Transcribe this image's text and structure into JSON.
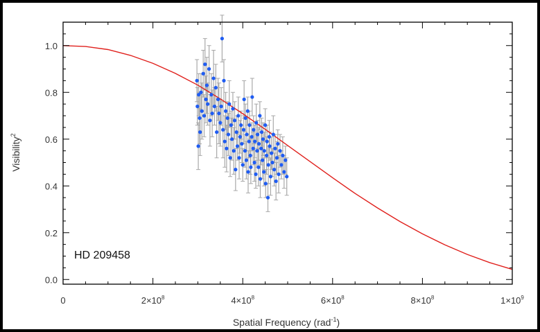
{
  "chart_data": {
    "type": "scatter",
    "title": "",
    "xlabel": {
      "base": "Spatial Frequency (rad",
      "sup": "-1",
      "tail": ")"
    },
    "ylabel": {
      "base": "Visibility",
      "sup": "2"
    },
    "xlim": [
      0,
      1000000000
    ],
    "ylim": [
      -0.02,
      1.1
    ],
    "x_ticks": [
      {
        "value": 0,
        "base": "0",
        "sup": ""
      },
      {
        "value": 200000000,
        "base": "2×10",
        "sup": "8"
      },
      {
        "value": 400000000,
        "base": "4×10",
        "sup": "8"
      },
      {
        "value": 600000000,
        "base": "6×10",
        "sup": "8"
      },
      {
        "value": 800000000,
        "base": "8×10",
        "sup": "8"
      },
      {
        "value": 1000000000,
        "base": "1×10",
        "sup": "9"
      }
    ],
    "y_ticks": [
      {
        "value": 0.0,
        "label": "0.0"
      },
      {
        "value": 0.2,
        "label": "0.2"
      },
      {
        "value": 0.4,
        "label": "0.4"
      },
      {
        "value": 0.6,
        "label": "0.6"
      },
      {
        "value": 0.8,
        "label": "0.8"
      },
      {
        "value": 1.0,
        "label": "1.0"
      }
    ],
    "annotation": "HD 209458",
    "grid": false,
    "colors": {
      "points": "#1f5cf2",
      "errorbars": "#a8a8a8",
      "model": "#e0201c",
      "axes": "#000000"
    },
    "model_curve": {
      "description_of_points": "uniform-disk visibility squared model",
      "x": [
        0,
        50000000,
        100000000,
        150000000,
        200000000,
        250000000,
        300000000,
        350000000,
        400000000,
        450000000,
        500000000,
        550000000,
        600000000,
        650000000,
        700000000,
        750000000,
        800000000,
        850000000,
        900000000,
        950000000,
        1000000000
      ],
      "y": [
        1.0,
        0.996,
        0.983,
        0.958,
        0.924,
        0.881,
        0.831,
        0.772,
        0.709,
        0.642,
        0.573,
        0.504,
        0.435,
        0.368,
        0.306,
        0.248,
        0.195,
        0.148,
        0.107,
        0.072,
        0.043
      ]
    },
    "series": [
      {
        "x": [
          298000000,
          299000000,
          301000000,
          302000000,
          304000000,
          305000000,
          307000000,
          309000000,
          312000000,
          314000000,
          316000000,
          318000000,
          320000000,
          322000000,
          325000000,
          327000000,
          330000000,
          332000000,
          335000000,
          337000000,
          340000000,
          342000000,
          345000000,
          347000000,
          350000000,
          352000000,
          354000000,
          356000000,
          358000000,
          360000000,
          362000000,
          364000000,
          366000000,
          368000000,
          370000000,
          372000000,
          374000000,
          376000000,
          378000000,
          380000000,
          382000000,
          384000000,
          386000000,
          388000000,
          390000000,
          392000000,
          394000000,
          396000000,
          398000000,
          400000000,
          402000000,
          403000000,
          405000000,
          406000000,
          408000000,
          409000000,
          411000000,
          412000000,
          414000000,
          415000000,
          417000000,
          418000000,
          420000000,
          421000000,
          423000000,
          424000000,
          426000000,
          427000000,
          429000000,
          430000000,
          432000000,
          433000000,
          435000000,
          436000000,
          438000000,
          439000000,
          441000000,
          442000000,
          444000000,
          445000000,
          447000000,
          448000000,
          450000000,
          451000000,
          453000000,
          454000000,
          456000000,
          457000000,
          459000000,
          460000000,
          462000000,
          464000000,
          466000000,
          468000000,
          470000000,
          472000000,
          474000000,
          476000000,
          478000000,
          480000000,
          483000000,
          486000000,
          489000000,
          492000000,
          495000000,
          498000000
        ],
        "y": [
          0.85,
          0.74,
          0.57,
          0.79,
          0.69,
          0.63,
          0.8,
          0.72,
          0.88,
          0.7,
          0.92,
          0.77,
          0.83,
          0.75,
          0.9,
          0.68,
          0.79,
          0.71,
          0.86,
          0.74,
          0.82,
          0.63,
          0.77,
          0.71,
          0.67,
          0.74,
          1.03,
          0.64,
          0.85,
          0.59,
          0.72,
          0.56,
          0.69,
          0.62,
          0.75,
          0.52,
          0.66,
          0.6,
          0.73,
          0.55,
          0.68,
          0.47,
          0.63,
          0.57,
          0.7,
          0.52,
          0.61,
          0.66,
          0.58,
          0.49,
          0.64,
          0.77,
          0.55,
          0.69,
          0.51,
          0.62,
          0.72,
          0.46,
          0.59,
          0.66,
          0.53,
          0.48,
          0.61,
          0.78,
          0.56,
          0.64,
          0.5,
          0.59,
          0.45,
          0.67,
          0.55,
          0.62,
          0.48,
          0.58,
          0.7,
          0.43,
          0.56,
          0.63,
          0.51,
          0.6,
          0.46,
          0.55,
          0.66,
          0.41,
          0.53,
          0.59,
          0.35,
          0.49,
          0.61,
          0.57,
          0.44,
          0.54,
          0.5,
          0.62,
          0.47,
          0.56,
          0.42,
          0.52,
          0.58,
          0.45,
          0.55,
          0.49,
          0.53,
          0.46,
          0.51,
          0.44
        ],
        "yerr": [
          0.09,
          0.08,
          0.1,
          0.09,
          0.11,
          0.1,
          0.08,
          0.12,
          0.1,
          0.09,
          0.11,
          0.1,
          0.12,
          0.09,
          0.1,
          0.11,
          0.09,
          0.1,
          0.12,
          0.08,
          0.1,
          0.11,
          0.09,
          0.13,
          0.1,
          0.08,
          0.1,
          0.12,
          0.09,
          0.11,
          0.08,
          0.1,
          0.07,
          0.09,
          0.1,
          0.08,
          0.06,
          0.09,
          0.07,
          0.1,
          0.08,
          0.09,
          0.07,
          0.06,
          0.08,
          0.09,
          0.07,
          0.06,
          0.08,
          0.07,
          0.06,
          0.08,
          0.07,
          0.06,
          0.08,
          0.07,
          0.06,
          0.09,
          0.07,
          0.06,
          0.08,
          0.07,
          0.06,
          0.08,
          0.07,
          0.06,
          0.08,
          0.07,
          0.06,
          0.08,
          0.07,
          0.06,
          0.08,
          0.07,
          0.06,
          0.08,
          0.07,
          0.06,
          0.08,
          0.07,
          0.06,
          0.08,
          0.07,
          0.06,
          0.08,
          0.07,
          0.06,
          0.08,
          0.07,
          0.06,
          0.08,
          0.07,
          0.06,
          0.08,
          0.07,
          0.06,
          0.08,
          0.07,
          0.06,
          0.08,
          0.07,
          0.06,
          0.08,
          0.07,
          0.06,
          0.08
        ]
      }
    ]
  }
}
